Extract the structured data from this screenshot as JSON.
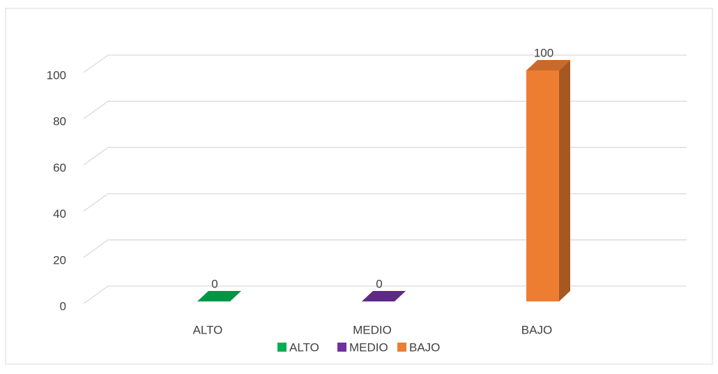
{
  "chart_data": {
    "type": "bar3d",
    "categories": [
      "ALTO",
      "MEDIO",
      "BAJO"
    ],
    "values": [
      0,
      0,
      100
    ],
    "colors": [
      "#00b050",
      "#7030a0",
      "#ed7d31"
    ],
    "ylim": [
      0,
      100
    ],
    "yticks": [
      0,
      20,
      40,
      60,
      80,
      100
    ],
    "grid": true,
    "legend": "bottom"
  }
}
